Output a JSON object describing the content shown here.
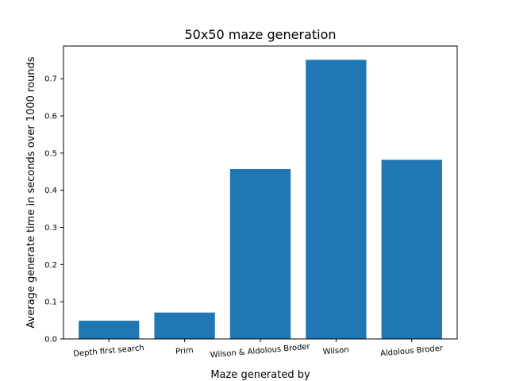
{
  "chart_data": {
    "type": "bar",
    "title": "50x50 maze generation",
    "xlabel": "Maze generated by",
    "ylabel": "Average generate time in seconds over 1000 rounds",
    "categories": [
      "Depth first search",
      "Prim",
      "Wilson & Aldolous Broder",
      "Wilson",
      "Aldolous Broder"
    ],
    "values": [
      0.049,
      0.071,
      0.457,
      0.751,
      0.482
    ],
    "ylim": [
      0,
      0.788
    ],
    "yticks": [
      "0.0",
      "0.1",
      "0.2",
      "0.3",
      "0.4",
      "0.5",
      "0.6",
      "0.7"
    ],
    "bar_color": "#1f77b4",
    "grid": false,
    "legend": false
  }
}
